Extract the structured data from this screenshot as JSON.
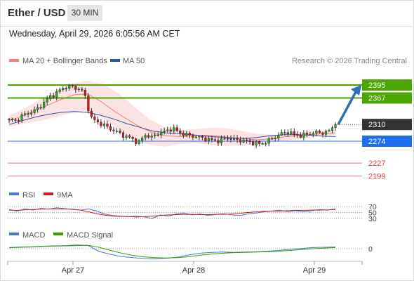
{
  "header": {
    "instrument": "Ether / USD",
    "timeframe": "30 MIN",
    "datetime": "Wednesday, April 29, 2026 6:05:56 AM CET",
    "credit": "Research © 2026 Trading Central"
  },
  "legend": {
    "bollinger_label": "MA 20 + Bollinger Bands",
    "ma50_label": "MA 50",
    "rsi_label": "RSI",
    "rsi_ma_label": "9MA",
    "macd_label": "MACD",
    "macd_signal_label": "MACD Signal"
  },
  "colors": {
    "bullish": "#2aa82a",
    "bearish": "#d01a1a",
    "target_green": "#4aa600",
    "support_blue": "#1e6cf0",
    "current_dark": "#333333",
    "resistance_red": "#e04040",
    "ma50": "#3050a0",
    "bollinger": "#f08080",
    "arrow": "#2e6eb3"
  },
  "chart_data": [
    {
      "type": "candlestick",
      "title": "Ether / USD",
      "timeframe": "30 MIN",
      "x_ticks": [
        "Apr 27",
        "Apr 28",
        "Apr 29"
      ],
      "ylim": [
        2180,
        2410
      ],
      "price_levels": [
        {
          "name": "target-2",
          "value": 2395,
          "label": "2395",
          "style": "green-line"
        },
        {
          "name": "target-1",
          "value": 2367,
          "label": "2367",
          "style": "green-line"
        },
        {
          "name": "last-price",
          "value": 2310,
          "label": "2310",
          "style": "dotted"
        },
        {
          "name": "pivot",
          "value": 2274,
          "label": "2274",
          "style": "blue-line"
        },
        {
          "name": "support-1",
          "value": 2227,
          "label": "2227",
          "style": "red-line"
        },
        {
          "name": "support-2",
          "value": 2199,
          "label": "2199",
          "style": "red-line"
        }
      ],
      "close_path": [
        2320,
        2318,
        2330,
        2335,
        2342,
        2355,
        2370,
        2378,
        2390,
        2392,
        2388,
        2380,
        2325,
        2315,
        2308,
        2300,
        2293,
        2285,
        2280,
        2270,
        2288,
        2282,
        2292,
        2295,
        2302,
        2293,
        2288,
        2285,
        2282,
        2279,
        2276,
        2274,
        2282,
        2278,
        2276,
        2274,
        2270,
        2268,
        2274,
        2282,
        2290,
        2294,
        2288,
        2286,
        2290,
        2293,
        2292,
        2295,
        2310
      ],
      "ma50": [
        2310,
        2318,
        2326,
        2332,
        2336,
        2338,
        2336,
        2330,
        2322,
        2312,
        2304,
        2296,
        2292,
        2290,
        2288,
        2285,
        2283,
        2281,
        2280,
        2282,
        2286,
        2288,
        2288,
        2287,
        2285,
        2284
      ],
      "ma20": [
        2318,
        2328,
        2340,
        2352,
        2364,
        2374,
        2376,
        2360,
        2340,
        2322,
        2305,
        2292,
        2286,
        2284,
        2285,
        2287,
        2285,
        2282,
        2279,
        2277,
        2279,
        2283,
        2286,
        2288,
        2290,
        2292
      ],
      "bollinger_upper": [
        2330,
        2345,
        2365,
        2382,
        2398,
        2404,
        2398,
        2378,
        2350,
        2322,
        2305,
        2298,
        2300,
        2303,
        2302,
        2296,
        2290,
        2288,
        2290,
        2294,
        2296,
        2298
      ],
      "bollinger_lower": [
        2305,
        2312,
        2318,
        2326,
        2334,
        2340,
        2324,
        2300,
        2280,
        2266,
        2262,
        2268,
        2270,
        2266,
        2264,
        2265,
        2268,
        2272,
        2276,
        2280,
        2286,
        2288
      ],
      "forecast_arrow": {
        "from": 2310,
        "to": 2395
      }
    },
    {
      "type": "line",
      "title": "RSI",
      "y_ticks": [
        "70",
        "50",
        "30"
      ],
      "series": [
        {
          "name": "RSI",
          "values": [
            60,
            55,
            62,
            58,
            64,
            61,
            66,
            63,
            60,
            58,
            62,
            55,
            45,
            40,
            38,
            36,
            38,
            35,
            30,
            42,
            38,
            45,
            48,
            42,
            45,
            40,
            44,
            46,
            42,
            40,
            45,
            48,
            52,
            55,
            58,
            53,
            56,
            52,
            56,
            60,
            58,
            62
          ]
        },
        {
          "name": "9MA",
          "values": [
            58,
            57,
            59,
            60,
            61,
            62,
            62,
            62,
            61,
            58,
            52,
            46,
            41,
            38,
            37,
            36,
            35,
            36,
            38,
            40,
            42,
            43,
            44,
            44,
            43,
            43,
            44,
            44,
            45,
            47,
            50,
            52,
            54,
            55,
            55,
            56,
            57,
            57,
            58,
            58,
            59,
            60
          ]
        }
      ]
    },
    {
      "type": "line",
      "title": "MACD",
      "y_ticks": [
        "0"
      ],
      "series": [
        {
          "name": "MACD",
          "values": [
            0.4,
            0.6,
            0.7,
            0.9,
            1.0,
            1.1,
            1.3,
            1.2,
            -1.0,
            -2.0,
            -2.8,
            -3.2,
            -3.5,
            -3.6,
            -3.4,
            -3.0,
            -2.2,
            -1.6,
            -1.3,
            -1.2,
            -1.3,
            -1.2,
            -1.1,
            -0.9,
            -0.6,
            -0.2,
            0.1,
            0.4,
            0.5,
            0.6
          ]
        },
        {
          "name": "MACD Signal",
          "values": [
            0.3,
            0.5,
            0.6,
            0.8,
            0.9,
            1.0,
            1.1,
            1.2,
            0.5,
            -0.6,
            -1.6,
            -2.4,
            -2.9,
            -3.2,
            -3.3,
            -3.2,
            -2.8,
            -2.3,
            -1.9,
            -1.6,
            -1.4,
            -1.3,
            -1.2,
            -1.1,
            -0.9,
            -0.6,
            -0.3,
            0.0,
            0.2,
            0.4
          ]
        }
      ]
    }
  ]
}
